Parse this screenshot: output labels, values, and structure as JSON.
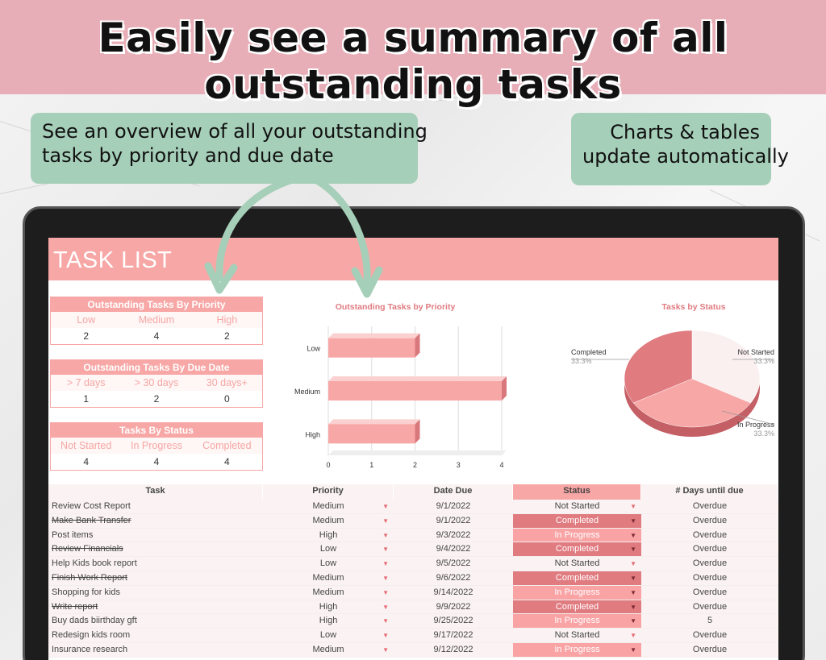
{
  "banner": {
    "title": "Easily see a summary of all outstanding tasks",
    "bg": "#e8aeb7"
  },
  "callouts": {
    "left": [
      "See an overview of all your outstanding",
      "tasks by priority and due date"
    ],
    "right": [
      "Charts & tables",
      "update automatically"
    ],
    "color": "#a6cfb9"
  },
  "sheet": {
    "title": "TASK LIST",
    "accent": "#f7a7a5",
    "summary_priority": {
      "title": "Outstanding Tasks By Priority",
      "headers": [
        "Low",
        "Medium",
        "High"
      ],
      "values": [
        "2",
        "4",
        "2"
      ]
    },
    "summary_due": {
      "title": "Outstanding Tasks By Due Date",
      "headers": [
        "> 7 days",
        "> 30 days",
        "30 days+"
      ],
      "values": [
        "1",
        "2",
        "0"
      ]
    },
    "summary_status": {
      "title": "Tasks By Status",
      "headers": [
        "Not Started",
        "In Progress",
        "Completed"
      ],
      "values": [
        "4",
        "4",
        "4"
      ]
    },
    "table": {
      "headers": [
        "Task",
        "Priority",
        "Date Due",
        "Status",
        "# Days until due"
      ],
      "rows": [
        {
          "task": "Review Cost Report",
          "priority": "Medium",
          "due": "9/1/2022",
          "status": "Not Started",
          "days": "Overdue",
          "done": false
        },
        {
          "task": "Make Bank Transfer",
          "priority": "Medium",
          "due": "9/1/2022",
          "status": "Completed",
          "days": "Overdue",
          "done": true
        },
        {
          "task": "Post items",
          "priority": "High",
          "due": "9/3/2022",
          "status": "In Progress",
          "days": "Overdue",
          "done": false
        },
        {
          "task": "Review Financials",
          "priority": "Low",
          "due": "9/4/2022",
          "status": "Completed",
          "days": "Overdue",
          "done": true
        },
        {
          "task": "Help Kids book report",
          "priority": "Low",
          "due": "9/5/2022",
          "status": "Not Started",
          "days": "Overdue",
          "done": false
        },
        {
          "task": "Finish Work Report",
          "priority": "Medium",
          "due": "9/6/2022",
          "status": "Completed",
          "days": "Overdue",
          "done": true
        },
        {
          "task": "Shopping for kids",
          "priority": "Medium",
          "due": "9/14/2022",
          "status": "In Progress",
          "days": "Overdue",
          "done": false
        },
        {
          "task": "Write report",
          "priority": "High",
          "due": "9/9/2022",
          "status": "Completed",
          "days": "Overdue",
          "done": true
        },
        {
          "task": "Buy dads biirthday gft",
          "priority": "High",
          "due": "9/25/2022",
          "status": "In Progress",
          "days": "5",
          "done": false
        },
        {
          "task": "Redesign kids room",
          "priority": "Low",
          "due": "9/17/2022",
          "status": "Not Started",
          "days": "Overdue",
          "done": false
        },
        {
          "task": "Insurance research",
          "priority": "Medium",
          "due": "9/12/2022",
          "status": "In Progress",
          "days": "Overdue",
          "done": false
        }
      ]
    }
  },
  "chart_data": [
    {
      "type": "bar",
      "orientation": "horizontal",
      "title": "Outstanding Tasks by Priority",
      "categories": [
        "Low",
        "Medium",
        "High"
      ],
      "values": [
        2,
        4,
        2
      ],
      "xlim": [
        0,
        4
      ],
      "ticks": [
        "0",
        "1",
        "2",
        "3",
        "4"
      ],
      "color": "#f7a7a5",
      "grid": true
    },
    {
      "type": "pie",
      "title": "Tasks by Status",
      "labels": [
        "Not Started",
        "In Progress",
        "Completed"
      ],
      "values": [
        33.3,
        33.3,
        33.3
      ],
      "percent_labels": [
        "33.3%",
        "33.3%",
        "33.3%"
      ],
      "colors": [
        "#fbf0f0",
        "#f7a7a5",
        "#e07b80"
      ]
    }
  ]
}
